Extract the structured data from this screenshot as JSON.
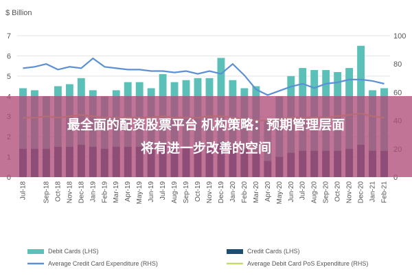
{
  "chart_data": {
    "type": "bar",
    "left_axis_label": "$ Billion",
    "left_ylim": [
      0,
      7
    ],
    "left_ticks": [
      0,
      1,
      2,
      3,
      4,
      5,
      6,
      7
    ],
    "right_ylim": [
      0,
      100
    ],
    "right_ticks": [
      0,
      20,
      40,
      60,
      80,
      100
    ],
    "categories": [
      "Jul-18",
      "Aug-18",
      "Sep-18",
      "Oct-18",
      "Nov-18",
      "Dec-18",
      "Jan-19",
      "Feb-19",
      "Mar-19",
      "Apr-19",
      "May-19",
      "Jun-19",
      "Jul-19",
      "Aug-19",
      "Sep-19",
      "Oct-19",
      "Nov-19",
      "Dec-19",
      "Jan-20",
      "Feb-20",
      "Mar-20",
      "Apr-20",
      "May-20",
      "Jun-20",
      "Jul-20",
      "Aug-20",
      "Sep-20",
      "Oct-20",
      "Nov-20",
      "Dec-20",
      "Jan-21",
      "Feb-21"
    ],
    "xtick_labels": [
      "Jul-18",
      "Sep-18",
      "Oct-18",
      "Nov-18",
      "Dec-18",
      "Jan-19",
      "Feb-19",
      "Mar-19",
      "Apr-19",
      "May-19",
      "Jun-19",
      "Jul-19",
      "Aug-19",
      "Sep-19",
      "Oct-19",
      "Nov-19",
      "Dec-19",
      "Jan-20",
      "Feb-20",
      "Mar-20",
      "Apr-20",
      "May-20",
      "Jun-20",
      "Jul-20",
      "Aug-20",
      "Sep-20",
      "Oct-20",
      "Nov-20",
      "Dec-20",
      "Jan-21",
      "Feb-21"
    ],
    "xtick_indices": [
      0,
      2,
      3,
      4,
      5,
      6,
      7,
      8,
      9,
      10,
      11,
      12,
      13,
      14,
      15,
      16,
      17,
      18,
      19,
      20,
      21,
      22,
      23,
      24,
      25,
      26,
      27,
      28,
      29,
      30,
      31
    ],
    "series": [
      {
        "name": "Debit Cards (LHS)",
        "type": "bar",
        "axis": "left",
        "color": "#5bc0b8",
        "values": [
          4.4,
          4.3,
          4.0,
          4.5,
          4.6,
          4.9,
          4.3,
          4.0,
          4.3,
          4.7,
          4.7,
          4.4,
          5.1,
          4.7,
          4.8,
          4.9,
          4.9,
          5.9,
          4.8,
          4.4,
          4.5,
          2.8,
          4.0,
          5.0,
          5.4,
          5.3,
          5.3,
          5.2,
          5.4,
          6.5,
          4.3,
          4.4
        ]
      },
      {
        "name": "Credit Cards (LHS)",
        "type": "bar",
        "axis": "left",
        "color": "#1a4f72",
        "values": [
          1.4,
          1.4,
          1.4,
          1.5,
          1.5,
          1.6,
          1.5,
          1.4,
          1.5,
          1.5,
          1.5,
          1.5,
          1.6,
          1.5,
          1.5,
          1.5,
          1.5,
          1.7,
          1.5,
          1.4,
          1.2,
          0.8,
          1.0,
          1.2,
          1.3,
          1.3,
          1.3,
          1.3,
          1.4,
          1.6,
          1.3,
          1.3
        ]
      },
      {
        "name": "Average Credit Card Expenditure (RHS)",
        "type": "line",
        "axis": "right",
        "color": "#5b8fd6",
        "values": [
          77,
          78,
          80,
          76,
          78,
          77,
          84,
          78,
          77,
          76,
          76,
          75,
          75,
          74,
          75,
          73,
          75,
          73,
          80,
          72,
          62,
          58,
          61,
          64,
          66,
          63,
          66,
          67,
          69,
          69,
          68,
          66
        ]
      },
      {
        "name": "Average Debit Card PoS Expenditure (RHS)",
        "type": "line",
        "axis": "right",
        "color": "#c8d96a",
        "values": [
          42,
          42,
          43,
          42,
          43,
          44,
          43,
          42,
          42,
          42,
          42,
          42,
          43,
          42,
          42,
          42,
          43,
          43,
          42,
          41,
          40,
          40,
          41,
          42,
          42,
          42,
          42,
          43,
          44,
          45,
          43,
          42
        ]
      }
    ],
    "overlay_text_lines": [
      "最全面的配资股票平台 机构策略：预期管理层面",
      "将有进一步改善的空间"
    ],
    "overlay_color": "#b04d78",
    "legend_placement": "bottom",
    "grid": true
  }
}
